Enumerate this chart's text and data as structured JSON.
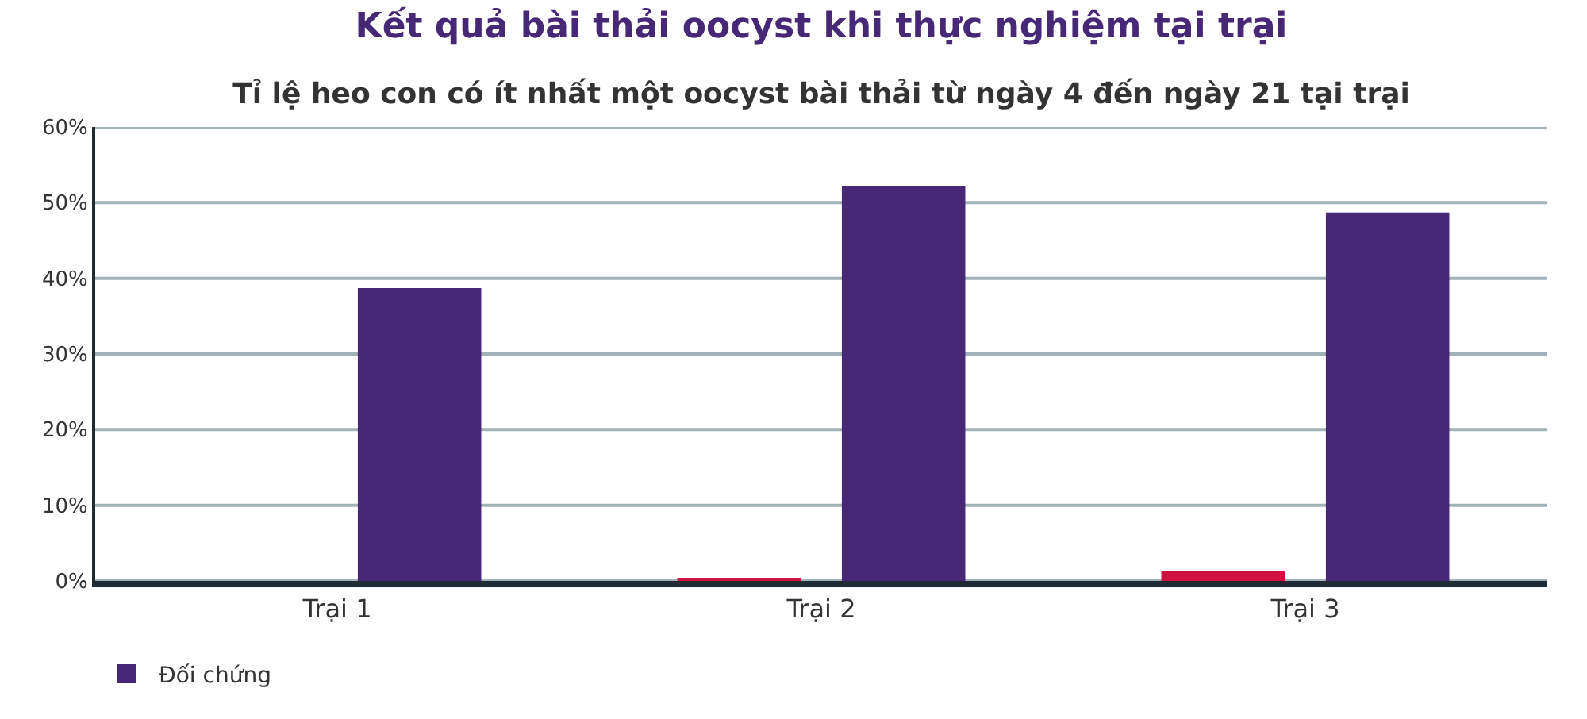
{
  "chart_data": {
    "type": "bar",
    "title": "Kết quả bài thải oocyst khi thực nghiệm tại trại",
    "subtitle": "Tỉ lệ heo con có ít nhất một oocyst bài thải từ ngày 4 đến ngày 21 tại trại",
    "categories": [
      "Trại 1",
      "Trại 2",
      "Trại 3"
    ],
    "series": [
      {
        "color": "#d0103f",
        "values": [
          0,
          0.4,
          1.3
        ]
      },
      {
        "name": "Đối chứng",
        "color": "#472877",
        "values": [
          38.7,
          52.2,
          48.7
        ]
      }
    ],
    "ylim": [
      0,
      60
    ],
    "yticks": [
      {
        "value": 0,
        "label": "0%"
      },
      {
        "value": 10,
        "label": "10%"
      },
      {
        "value": 20,
        "label": "20%"
      },
      {
        "value": 30,
        "label": "30%"
      },
      {
        "value": 40,
        "label": "40%"
      },
      {
        "value": 50,
        "label": "50%"
      },
      {
        "value": 60,
        "label": "60%"
      }
    ],
    "grid": "y",
    "legend": "bottom left"
  }
}
